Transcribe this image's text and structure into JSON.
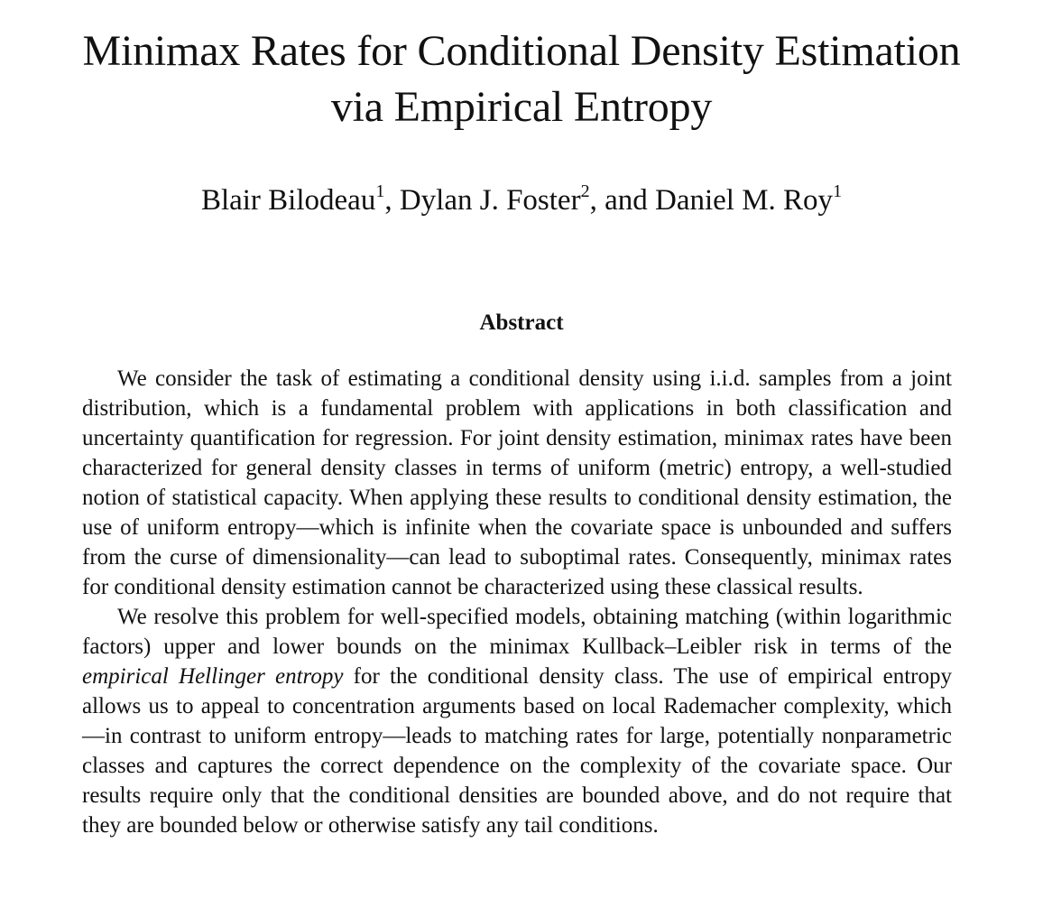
{
  "paper": {
    "title_line1": "Minimax Rates for Conditional Density Estimation",
    "title_line2": "via Empirical Entropy",
    "authors": [
      {
        "name": "Blair Bilodeau",
        "affiliation": "1",
        "sep": ", "
      },
      {
        "name": "Dylan J. Foster",
        "affiliation": "2",
        "sep": ", and "
      },
      {
        "name": "Daniel M. Roy",
        "affiliation": "1",
        "sep": ""
      }
    ],
    "abstract_heading": "Abstract",
    "paragraph1": "We consider the task of estimating a conditional density using i.i.d. samples from a joint distribution, which is a fundamental problem with applications in both clas­sification and uncertainty quantification for regression. For joint density estimation, minimax rates have been characterized for general density classes in terms of uni­form (metric) entropy, a well-studied notion of statistical capacity. When applying these results to conditional density estimation, the use of uniform entropy—which is infinite when the covariate space is unbounded and suffers from the curse of dimensionality—can lead to suboptimal rates.  Consequently, minimax rates for conditional density estimation cannot be characterized using these classical results.",
    "paragraph2_before": "We resolve this problem for well-specified models, obtaining matching (within logarithmic factors) upper and lower bounds on the minimax Kullback–Leibler risk in terms of the ",
    "paragraph2_emph": "empirical Hellinger entropy",
    "paragraph2_after": " for the conditional density class. The use of empirical entropy allows us to appeal to concentration arguments based on local Rademacher complexity, which—in contrast to uniform entropy—leads to matching rates for large, potentially nonparametric classes and captures the correct depen­dence on the complexity of the covariate space. Our results require only that the conditional densities are bounded above, and do not require that they are bounded below or otherwise satisfy any tail conditions."
  }
}
